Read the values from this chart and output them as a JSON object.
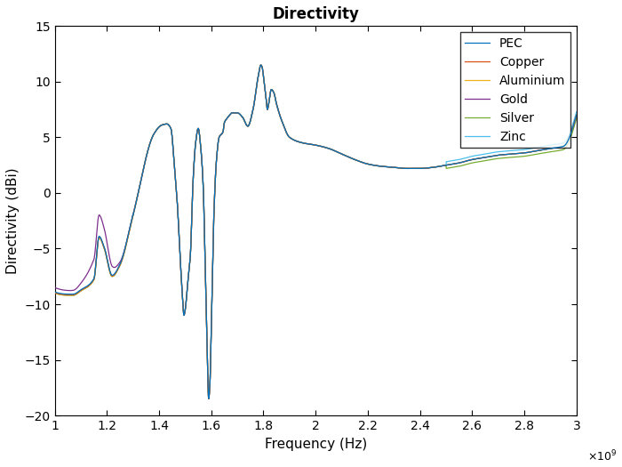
{
  "title": "Directivity",
  "xlabel": "Frequency (Hz)",
  "ylabel": "Directivity (dBi)",
  "xlim": [
    1000000000.0,
    3000000000.0
  ],
  "ylim": [
    -20,
    15
  ],
  "xticks": [
    1000000000.0,
    1200000000.0,
    1400000000.0,
    1600000000.0,
    1800000000.0,
    2000000000.0,
    2200000000.0,
    2400000000.0,
    2600000000.0,
    2800000000.0,
    3000000000.0
  ],
  "yticks": [
    -20,
    -15,
    -10,
    -5,
    0,
    5,
    10,
    15
  ],
  "series": [
    {
      "label": "PEC",
      "color": "#0072BD",
      "lw": 0.9,
      "zorder": 6
    },
    {
      "label": "Copper",
      "color": "#D95319",
      "lw": 0.9,
      "zorder": 5
    },
    {
      "label": "Aluminium",
      "color": "#EDB120",
      "lw": 0.9,
      "zorder": 4
    },
    {
      "label": "Gold",
      "color": "#7E2F8E",
      "lw": 0.9,
      "zorder": 3
    },
    {
      "label": "Silver",
      "color": "#77AC30",
      "lw": 0.9,
      "zorder": 2
    },
    {
      "label": "Zinc",
      "color": "#4DBEEE",
      "lw": 0.9,
      "zorder": 1
    }
  ],
  "legend_loc": "upper right",
  "title_fontsize": 12,
  "label_fontsize": 11,
  "tick_fontsize": 10,
  "bg_color": "#ffffff"
}
